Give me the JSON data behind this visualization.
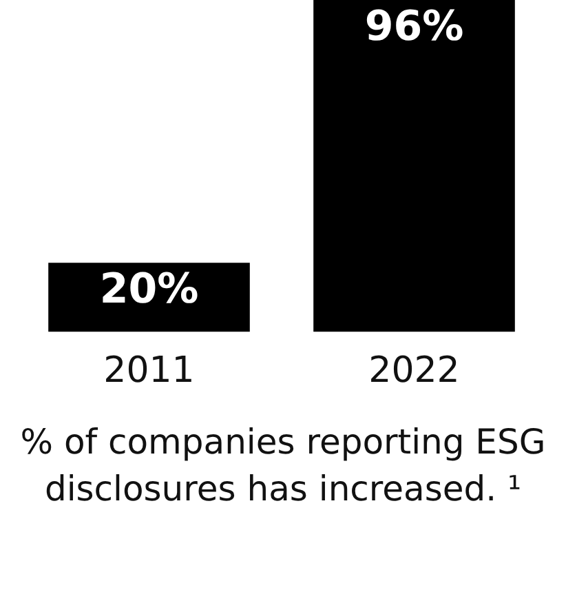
{
  "chart_data": {
    "type": "bar",
    "title": "% of companies reporting ESG disclosures has increased. ¹",
    "categories": [
      "2011",
      "2022"
    ],
    "values": [
      20,
      96
    ],
    "value_labels": [
      "20%",
      "96%"
    ],
    "color": "#000000",
    "grid": false,
    "legend": false,
    "tick_labels": "x"
  }
}
